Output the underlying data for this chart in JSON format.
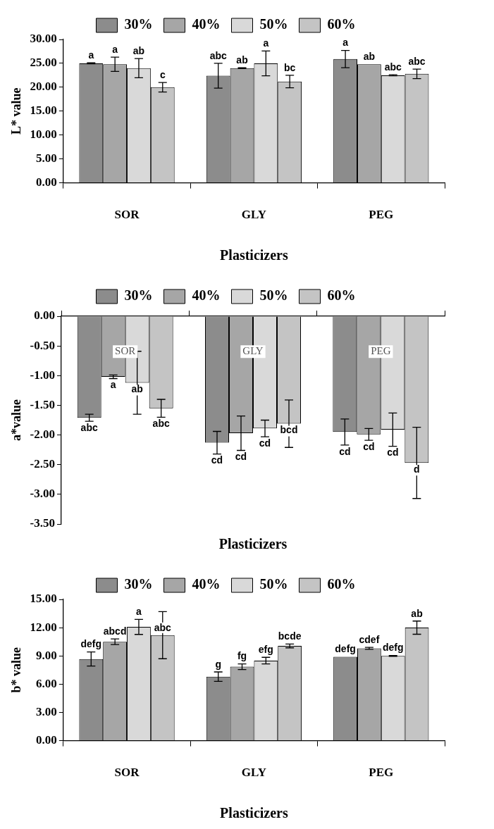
{
  "chart_data": [
    {
      "type": "bar",
      "ylabel": "L* value",
      "xlabel": "Plasticizers",
      "categories": [
        "SOR",
        "GLY",
        "PEG"
      ],
      "ylim": [
        0,
        30
      ],
      "yticks": [
        {
          "value": 0,
          "label": "0.00"
        },
        {
          "value": 5,
          "label": "5.00"
        },
        {
          "value": 10,
          "label": "10.00"
        },
        {
          "value": 15,
          "label": "15.00"
        },
        {
          "value": 20,
          "label": "20.00"
        },
        {
          "value": 25,
          "label": "25.00"
        },
        {
          "value": 30,
          "label": "30.00"
        }
      ],
      "legend": "top",
      "grid": false,
      "series": [
        {
          "name": "30%",
          "color": "#8c8c8c",
          "values": [
            25.0,
            22.4,
            25.9
          ],
          "errors": [
            0.1,
            2.6,
            1.8
          ],
          "value_labels": [
            "a",
            "abc",
            "a"
          ]
        },
        {
          "name": "40%",
          "color": "#a6a6a6",
          "values": [
            24.8,
            24.0,
            24.8
          ],
          "errors": [
            1.5,
            0.1,
            null
          ],
          "value_labels": [
            "a",
            "ab",
            "ab"
          ]
        },
        {
          "name": "50%",
          "color": "#d9d9d9",
          "values": [
            24.0,
            25.0,
            22.5
          ],
          "errors": [
            2.0,
            2.6,
            0.1
          ],
          "value_labels": [
            "ab",
            "a",
            "abc"
          ]
        },
        {
          "name": "60%",
          "color": "#c4c4c4",
          "values": [
            20.0,
            21.2,
            22.8
          ],
          "errors": [
            1.0,
            1.3,
            1.0
          ],
          "value_labels": [
            "c",
            "bc",
            "abc"
          ]
        }
      ]
    },
    {
      "type": "bar",
      "ylabel": "a*value",
      "xlabel": "Plasticizers",
      "categories": [
        "SOR",
        "GLY",
        "PEG"
      ],
      "ylim": [
        -3.5,
        0
      ],
      "yticks": [
        {
          "value": 0,
          "label": "0.00"
        },
        {
          "value": -0.5,
          "label": "-0.50"
        },
        {
          "value": -1,
          "label": "-1.00"
        },
        {
          "value": -1.5,
          "label": "-1.50"
        },
        {
          "value": -2,
          "label": "-2.00"
        },
        {
          "value": -2.5,
          "label": "-2.50"
        },
        {
          "value": -3,
          "label": "-3.00"
        },
        {
          "value": -3.5,
          "label": "-3.50"
        }
      ],
      "legend": "top",
      "grid": false,
      "series": [
        {
          "name": "30%",
          "color": "#8c8c8c",
          "values": [
            -1.71,
            -2.13,
            -1.95
          ],
          "errors": [
            0.06,
            0.19,
            0.22
          ],
          "value_labels": [
            "abc",
            "cd",
            "cd"
          ]
        },
        {
          "name": "40%",
          "color": "#a6a6a6",
          "values": [
            -1.02,
            -1.97,
            -1.99
          ],
          "errors": [
            0.03,
            0.29,
            0.1
          ],
          "value_labels": [
            "a",
            "cd",
            "cd"
          ]
        },
        {
          "name": "50%",
          "color": "#d9d9d9",
          "values": [
            -1.12,
            -1.89,
            -1.91
          ],
          "errors": [
            0.53,
            0.14,
            0.28
          ],
          "value_labels": [
            "ab",
            "cd",
            "cd"
          ]
        },
        {
          "name": "60%",
          "color": "#c4c4c4",
          "values": [
            -1.55,
            -1.81,
            -2.47
          ],
          "errors": [
            0.15,
            0.4,
            0.6
          ],
          "value_labels": [
            "abc",
            "bcd",
            "d"
          ]
        }
      ]
    },
    {
      "type": "bar",
      "ylabel": "b* value",
      "xlabel": "Plasticizers",
      "categories": [
        "SOR",
        "GLY",
        "PEG"
      ],
      "ylim": [
        0,
        15
      ],
      "yticks": [
        {
          "value": 0,
          "label": "0.00"
        },
        {
          "value": 3,
          "label": "3.00"
        },
        {
          "value": 6,
          "label": "6.00"
        },
        {
          "value": 9,
          "label": "9.00"
        },
        {
          "value": 12,
          "label": "12.00"
        },
        {
          "value": 15,
          "label": "15.00"
        }
      ],
      "legend": "top",
      "grid": false,
      "series": [
        {
          "name": "30%",
          "color": "#8c8c8c",
          "values": [
            8.67,
            6.8,
            8.9
          ],
          "errors": [
            0.75,
            0.5,
            null
          ],
          "value_labels": [
            "defg",
            "g",
            "defg"
          ]
        },
        {
          "name": "40%",
          "color": "#a6a6a6",
          "values": [
            10.5,
            7.85,
            9.8
          ],
          "errors": [
            0.3,
            0.3,
            0.1
          ],
          "value_labels": [
            "abcd",
            "fg",
            "cdef"
          ]
        },
        {
          "name": "50%",
          "color": "#d9d9d9",
          "values": [
            12.08,
            8.5,
            9.0
          ],
          "errors": [
            0.8,
            0.35,
            0.05
          ],
          "value_labels": [
            "a",
            "efg",
            "defg"
          ]
        },
        {
          "name": "60%",
          "color": "#c4c4c4",
          "values": [
            11.2,
            10.06,
            12.0
          ],
          "errors": [
            2.5,
            0.2,
            0.7
          ],
          "value_labels": [
            "abc",
            "bcde",
            "ab"
          ]
        }
      ]
    }
  ]
}
